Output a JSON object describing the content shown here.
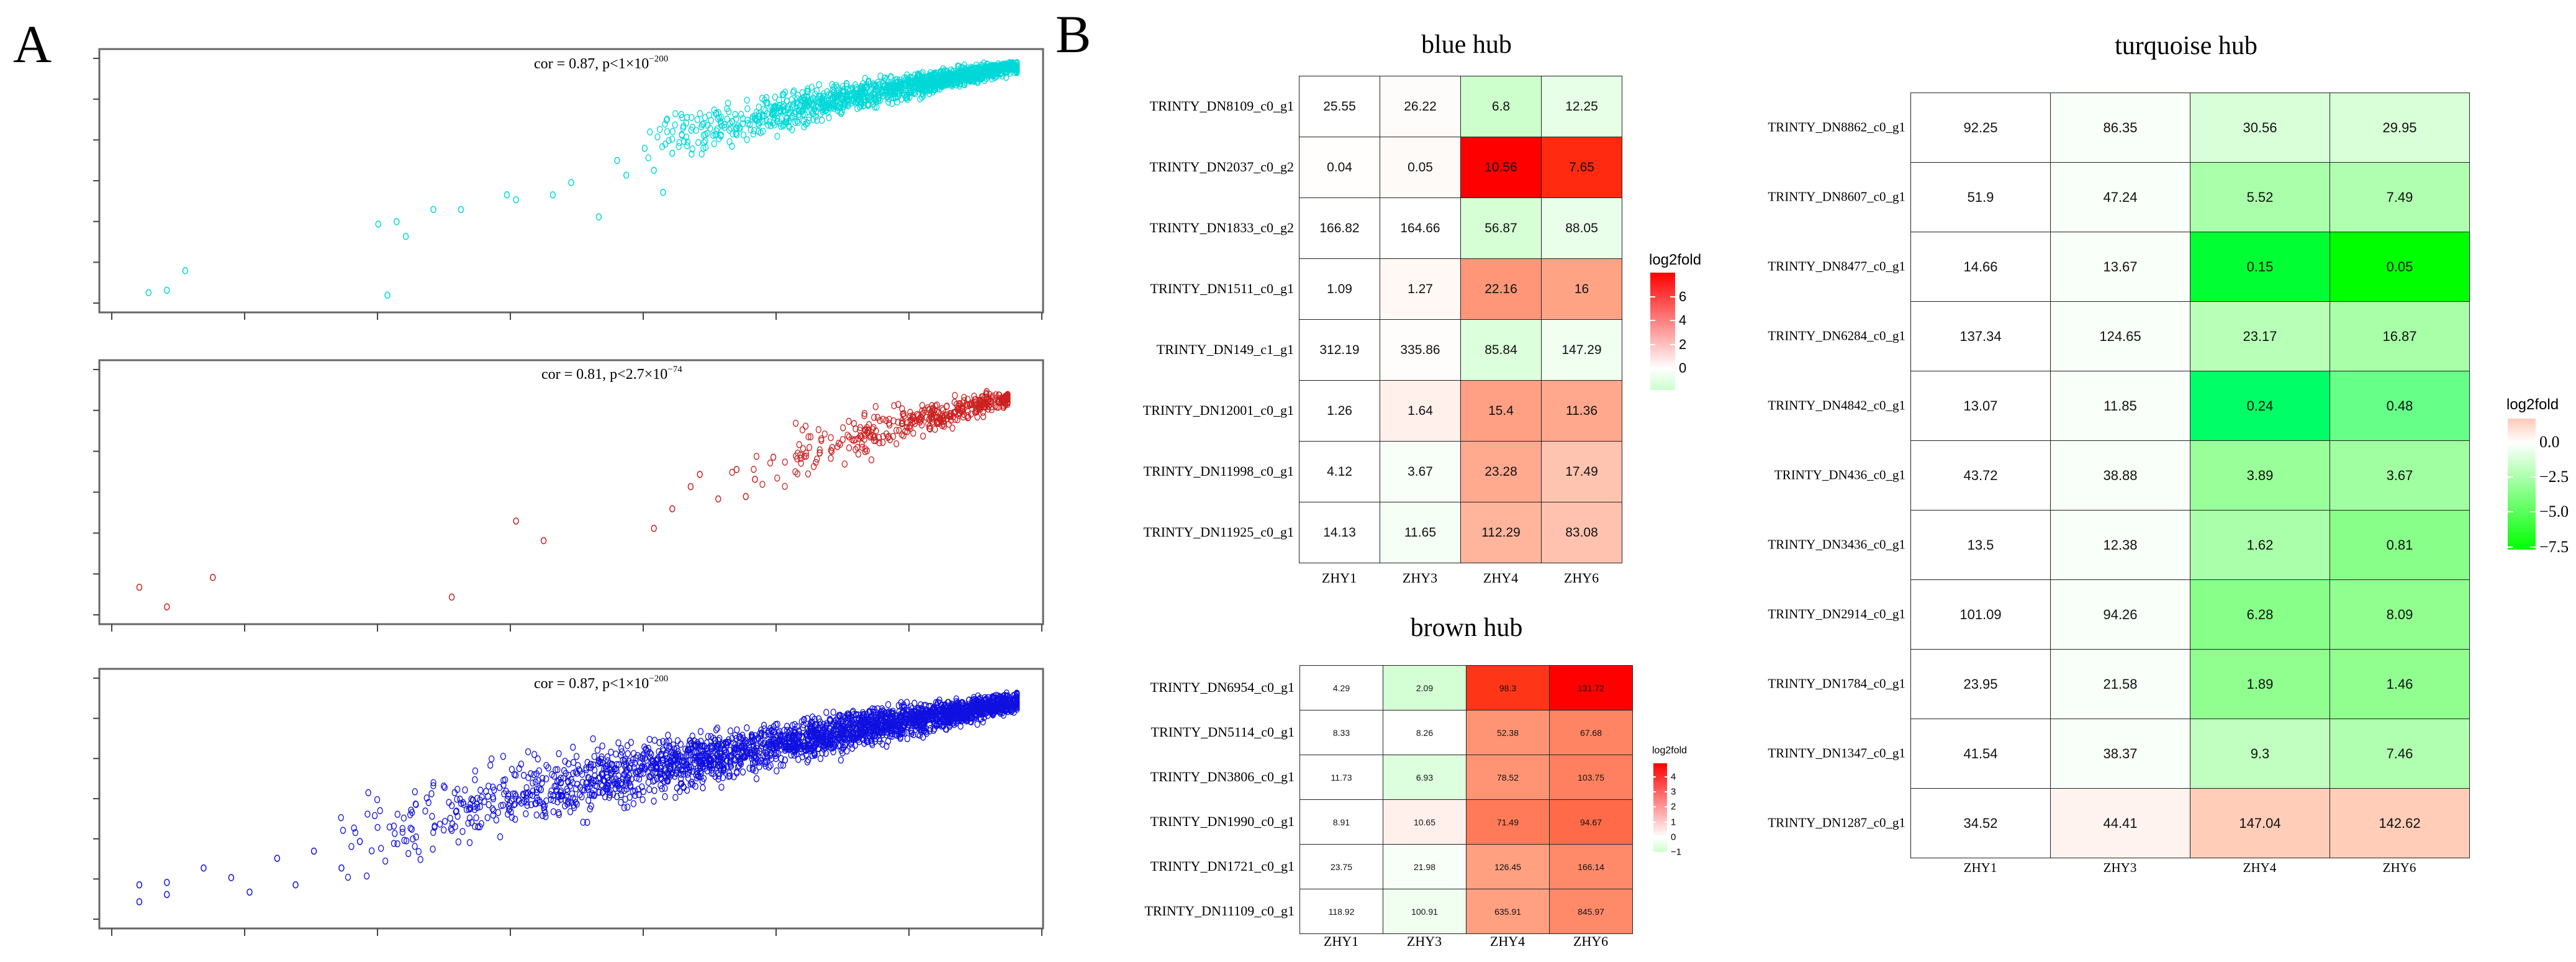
{
  "panel_labels": {
    "a": "A",
    "b": "B"
  },
  "chart_data": [
    {
      "type": "scatter",
      "id": "scatter-turquoise",
      "annotation": {
        "base": "cor = 0.87, p<1×10",
        "exponent": "−200"
      },
      "color": "#00d8d8",
      "xlim": [
        0,
        10
      ],
      "ylim": [
        0,
        10
      ],
      "grid": false,
      "points": [
        [
          0.4,
          0.5
        ],
        [
          0.6,
          0.6
        ],
        [
          0.8,
          1.4
        ],
        [
          3.0,
          0.4
        ],
        [
          2.9,
          3.3
        ],
        [
          3.1,
          3.4
        ],
        [
          3.2,
          2.8
        ],
        [
          3.5,
          3.9
        ],
        [
          3.8,
          3.9
        ],
        [
          4.3,
          4.5
        ],
        [
          4.4,
          4.3
        ],
        [
          4.8,
          4.5
        ],
        [
          5.0,
          5.0
        ],
        [
          5.3,
          3.6
        ],
        [
          5.6,
          5.3
        ],
        [
          5.8,
          6.4
        ],
        [
          5.5,
          5.9
        ],
        [
          6.0,
          4.6
        ],
        [
          5.9,
          5.5
        ],
        [
          6.1,
          6.2
        ]
      ],
      "cloud": {
        "count": 1400,
        "x_start": 5.6,
        "x_end": 9.85,
        "y_start": 6.2,
        "y_end": 9.75,
        "spread": 0.75
      }
    },
    {
      "type": "scatter",
      "id": "scatter-brown",
      "annotation": {
        "base": "cor = 0.81, p<2.7×10",
        "exponent": "−74"
      },
      "color": "#cc2020",
      "xlim": [
        0,
        10
      ],
      "ylim": [
        0,
        10
      ],
      "grid": false,
      "points": [
        [
          0.3,
          1.2
        ],
        [
          0.6,
          0.4
        ],
        [
          1.1,
          1.6
        ],
        [
          3.7,
          0.8
        ],
        [
          4.4,
          3.9
        ],
        [
          4.7,
          3.1
        ],
        [
          5.9,
          3.6
        ],
        [
          6.3,
          5.3
        ],
        [
          6.4,
          5.8
        ],
        [
          6.1,
          4.4
        ],
        [
          6.6,
          4.8
        ],
        [
          6.8,
          6.0
        ],
        [
          7.0,
          5.6
        ],
        [
          7.2,
          6.5
        ],
        [
          6.9,
          4.9
        ]
      ],
      "cloud": {
        "count": 380,
        "x_start": 6.8,
        "x_end": 9.75,
        "y_start": 5.6,
        "y_end": 8.9,
        "spread": 0.9
      }
    },
    {
      "type": "scatter",
      "id": "scatter-blue",
      "annotation": {
        "base": "cor = 0.87, p<1×10",
        "exponent": "−200"
      },
      "color": "#1010e0",
      "xlim": [
        0,
        10
      ],
      "ylim": [
        0,
        10
      ],
      "grid": false,
      "points": [
        [
          0.3,
          0.8
        ],
        [
          0.3,
          1.5
        ],
        [
          0.6,
          1.1
        ],
        [
          0.6,
          1.6
        ],
        [
          1.0,
          2.2
        ],
        [
          1.3,
          1.8
        ],
        [
          1.5,
          1.2
        ],
        [
          1.8,
          2.6
        ],
        [
          2.0,
          1.5
        ],
        [
          2.2,
          2.9
        ],
        [
          2.5,
          2.2
        ],
        [
          2.7,
          3.3
        ]
      ],
      "cloud": {
        "count": 2600,
        "x_start": 2.2,
        "x_end": 9.85,
        "y_start": 2.8,
        "y_end": 9.1,
        "spread": 1.3
      }
    },
    {
      "type": "heatmap",
      "id": "heatmap-blue-hub",
      "title": "blue hub",
      "columns": [
        "ZHY1",
        "ZHY3",
        "ZHY4",
        "ZHY6"
      ],
      "rows": [
        {
          "label": "TRINTY_DN8109_c0_g1",
          "values": [
            "25.55",
            "26.22",
            "6.8",
            "12.25"
          ],
          "colors": [
            "#ffffff",
            "#fefcfb",
            "#ccffcc",
            "#e6ffe6"
          ]
        },
        {
          "label": "TRINTY_DN2037_c0_g2",
          "values": [
            "0.04",
            "0.05",
            "10.56",
            "7.65"
          ],
          "colors": [
            "#fffefd",
            "#fefaf8",
            "#ff0000",
            "#ff2a10"
          ]
        },
        {
          "label": "TRINTY_DN1833_c0_g2",
          "values": [
            "166.82",
            "164.66",
            "56.87",
            "88.05"
          ],
          "colors": [
            "#ffffff",
            "#ffffff",
            "#d6ffd6",
            "#eaffea"
          ]
        },
        {
          "label": "TRINTY_DN1511_c0_g1",
          "values": [
            "1.09",
            "1.27",
            "22.16",
            "16"
          ],
          "colors": [
            "#ffffff",
            "#fff8f5",
            "#ff9677",
            "#ffa385"
          ]
        },
        {
          "label": "TRINTY_DN149_c1_g1",
          "values": [
            "312.19",
            "335.86",
            "85.84",
            "147.29"
          ],
          "colors": [
            "#ffffff",
            "#fffdfc",
            "#dcffdc",
            "#f0fff0"
          ]
        },
        {
          "label": "TRINTY_DN12001_c0_g1",
          "values": [
            "1.26",
            "1.64",
            "15.4",
            "11.36"
          ],
          "colors": [
            "#ffffff",
            "#fff0ec",
            "#ffa084",
            "#ffa88d"
          ]
        },
        {
          "label": "TRINTY_DN11998_c0_g1",
          "values": [
            "4.12",
            "3.67",
            "23.28",
            "17.49"
          ],
          "colors": [
            "#ffffff",
            "#f8fff8",
            "#ffa98f",
            "#ffc4b0"
          ]
        },
        {
          "label": "TRINTY_DN11925_c0_g1",
          "values": [
            "14.13",
            "11.65",
            "112.29",
            "83.08"
          ],
          "colors": [
            "#ffffff",
            "#f6fff6",
            "#ffb49c",
            "#ffc2ae"
          ]
        }
      ],
      "legend": {
        "title": "log2fold",
        "ticks": [
          "6",
          "4",
          "2",
          "0"
        ],
        "tick_values": [
          6,
          4,
          2,
          0
        ],
        "range": [
          -1.8,
          8
        ],
        "colors": {
          "high": "#ff0000",
          "mid": "#ffffff",
          "low": "#ccffcc"
        }
      }
    },
    {
      "type": "heatmap",
      "id": "heatmap-brown-hub",
      "title": "brown hub",
      "columns": [
        "ZHY1",
        "ZHY3",
        "ZHY4",
        "ZHY6"
      ],
      "rows": [
        {
          "label": "TRINTY_DN6954_c0_g1",
          "values": [
            "4.29",
            "2.09",
            "98.3",
            "131.72"
          ],
          "colors": [
            "#ffffff",
            "#d4ffd4",
            "#ff3518",
            "#ff0000"
          ]
        },
        {
          "label": "TRINTY_DN5114_c0_g1",
          "values": [
            "8.33",
            "8.26",
            "52.38",
            "67.68"
          ],
          "colors": [
            "#ffffff",
            "#ffffff",
            "#ff9474",
            "#ff8464"
          ]
        },
        {
          "label": "TRINTY_DN3806_c0_g1",
          "values": [
            "11.73",
            "6.93",
            "78.52",
            "103.75"
          ],
          "colors": [
            "#ffffff",
            "#ddffdd",
            "#ff9474",
            "#ff8060"
          ]
        },
        {
          "label": "TRINTY_DN1990_c0_g1",
          "values": [
            "8.91",
            "10.65",
            "71.49",
            "94.67"
          ],
          "colors": [
            "#ffffff",
            "#fff0ec",
            "#ff7a58",
            "#ff6b48"
          ]
        },
        {
          "label": "TRINTY_DN1721_c0_g1",
          "values": [
            "23.75",
            "21.98",
            "126.45",
            "166.14"
          ],
          "colors": [
            "#ffffff",
            "#f8fff8",
            "#ffa080",
            "#ff8a6a"
          ]
        },
        {
          "label": "TRINTY_DN11109_c0_g1",
          "values": [
            "118.92",
            "100.91",
            "635.91",
            "845.97"
          ],
          "colors": [
            "#ffffff",
            "#f0fff0",
            "#ffa080",
            "#ff8a6a"
          ]
        }
      ],
      "legend": {
        "title": "log2fold",
        "ticks": [
          "4",
          "3",
          "2",
          "1",
          "0",
          "−1"
        ],
        "tick_values": [
          4,
          3,
          2,
          1,
          0,
          -1
        ],
        "range": [
          -1,
          4.9
        ],
        "colors": {
          "high": "#ff0000",
          "mid": "#ffffff",
          "low": "#ccffcc"
        }
      }
    },
    {
      "type": "heatmap",
      "id": "heatmap-turquoise-hub",
      "title": "turquoise hub",
      "columns": [
        "ZHY1",
        "ZHY3",
        "ZHY4",
        "ZHY6"
      ],
      "rows": [
        {
          "label": "TRINTY_DN8862_c0_g1",
          "values": [
            "92.25",
            "86.35",
            "30.56",
            "29.95"
          ],
          "colors": [
            "#ffffff",
            "#f9fff9",
            "#d8ffd8",
            "#d8ffd8"
          ]
        },
        {
          "label": "TRINTY_DN8607_c0_g1",
          "values": [
            "51.9",
            "47.24",
            "5.52",
            "7.49"
          ],
          "colors": [
            "#ffffff",
            "#f9fff9",
            "#aaffaa",
            "#b0ffb0"
          ]
        },
        {
          "label": "TRINTY_DN8477_c0_g1",
          "values": [
            "14.66",
            "13.67",
            "0.15",
            "0.05"
          ],
          "colors": [
            "#ffffff",
            "#f9fff9",
            "#00ff33",
            "#00ff00"
          ]
        },
        {
          "label": "TRINTY_DN6284_c0_g1",
          "values": [
            "137.34",
            "124.65",
            "23.17",
            "16.87"
          ],
          "colors": [
            "#ffffff",
            "#f9fff9",
            "#b8ffb8",
            "#a8ffa8"
          ]
        },
        {
          "label": "TRINTY_DN4842_c0_g1",
          "values": [
            "13.07",
            "11.85",
            "0.24",
            "0.48"
          ],
          "colors": [
            "#ffffff",
            "#f9fff9",
            "#00ff66",
            "#66ff88"
          ]
        },
        {
          "label": "TRINTY_DN436_c0_g1",
          "values": [
            "43.72",
            "38.88",
            "3.89",
            "3.67"
          ],
          "colors": [
            "#ffffff",
            "#f9fff9",
            "#99ff99",
            "#a0ffa0"
          ]
        },
        {
          "label": "TRINTY_DN3436_c0_g1",
          "values": [
            "13.5",
            "12.38",
            "1.62",
            "0.81"
          ],
          "colors": [
            "#ffffff",
            "#f9fff9",
            "#aaffaa",
            "#88ff88"
          ]
        },
        {
          "label": "TRINTY_DN2914_c0_g1",
          "values": [
            "101.09",
            "94.26",
            "6.28",
            "8.09"
          ],
          "colors": [
            "#ffffff",
            "#f9fff9",
            "#88ff88",
            "#90ff90"
          ]
        },
        {
          "label": "TRINTY_DN1784_c0_g1",
          "values": [
            "23.95",
            "21.58",
            "1.89",
            "1.46"
          ],
          "colors": [
            "#ffffff",
            "#f9fff9",
            "#90ff90",
            "#90ff90"
          ]
        },
        {
          "label": "TRINTY_DN1347_c0_g1",
          "values": [
            "41.54",
            "38.37",
            "9.3",
            "7.46"
          ],
          "colors": [
            "#ffffff",
            "#f9fff9",
            "#c0ffc0",
            "#b0ffb0"
          ]
        },
        {
          "label": "TRINTY_DN1287_c0_g1",
          "values": [
            "34.52",
            "44.41",
            "147.04",
            "142.62"
          ],
          "colors": [
            "#ffffff",
            "#fff3ef",
            "#ffcdb8",
            "#ffcdb8"
          ]
        }
      ],
      "legend": {
        "title": "log2fold",
        "ticks": [
          "0.0",
          "−2.5",
          "−5.0",
          "−7.5"
        ],
        "tick_values": [
          0,
          -2.5,
          -5,
          -7.5
        ],
        "range": [
          -7.7,
          1.7
        ],
        "colors": {
          "high": "#ffc8b8",
          "mid": "#ffffff",
          "low": "#00ff00"
        }
      }
    }
  ]
}
